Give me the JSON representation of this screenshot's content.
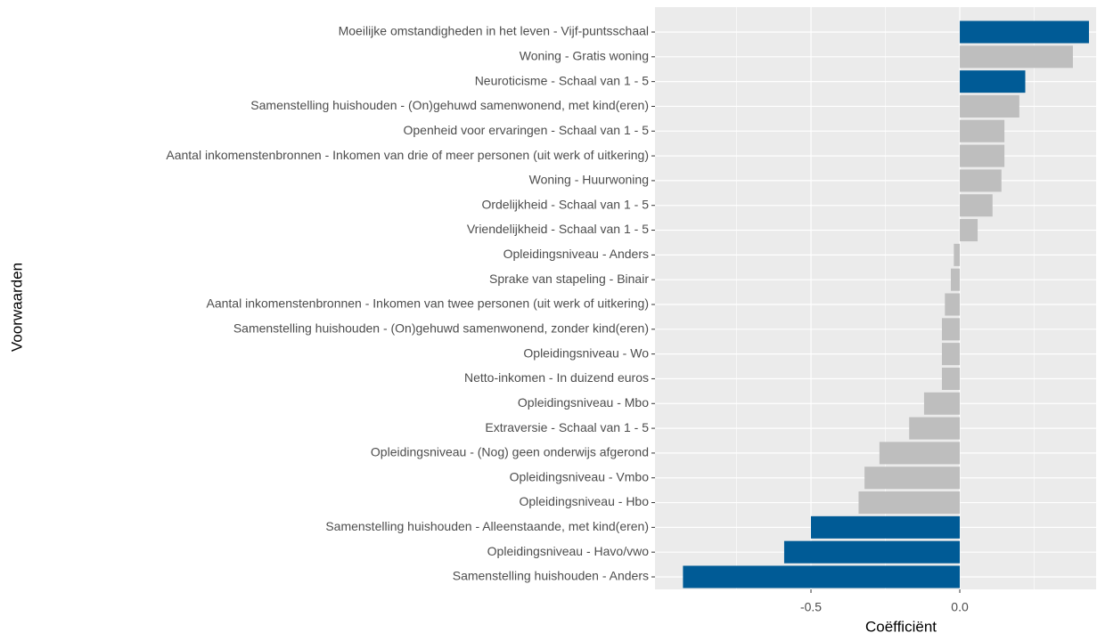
{
  "chart_data": {
    "type": "barh",
    "xlabel": "Coëfficiënt",
    "ylabel": "Voorwaarden",
    "categories": [
      "Moeilijke omstandigheden in het leven - Vijf-puntsschaal",
      "Woning - Gratis woning",
      "Neuroticisme - Schaal van 1 - 5",
      "Samenstelling huishouden - (On)gehuwd samenwonend, met kind(eren)",
      "Openheid voor ervaringen - Schaal van 1 - 5",
      "Aantal inkomenstenbronnen - Inkomen van drie of meer personen (uit werk of uitkering)",
      "Woning - Huurwoning",
      "Ordelijkheid - Schaal van 1 - 5",
      "Vriendelijkheid - Schaal van 1 - 5",
      "Opleidingsniveau - Anders",
      "Sprake van stapeling - Binair",
      "Aantal inkomenstenbronnen - Inkomen van twee personen (uit werk of uitkering)",
      "Samenstelling huishouden - (On)gehuwd samenwonend, zonder kind(eren)",
      "Opleidingsniveau - Wo",
      "Netto-inkomen - In duizend euros",
      "Opleidingsniveau - Mbo",
      "Extraversie - Schaal van 1 - 5",
      "Opleidingsniveau - (Nog) geen onderwijs afgerond",
      "Opleidingsniveau - Vmbo",
      "Opleidingsniveau - Hbo",
      "Samenstelling huishouden - Alleenstaande, met kind(eren)",
      "Opleidingsniveau - Havo/vwo",
      "Samenstelling huishouden - Anders"
    ],
    "values": [
      0.434,
      0.38,
      0.22,
      0.2,
      0.15,
      0.15,
      0.14,
      0.11,
      0.06,
      -0.02,
      -0.03,
      -0.05,
      -0.06,
      -0.06,
      -0.06,
      -0.12,
      -0.17,
      -0.27,
      -0.32,
      -0.34,
      -0.5,
      -0.59,
      -0.93
    ],
    "colors": [
      "#005b96",
      "#bebebe",
      "#005b96",
      "#bebebe",
      "#bebebe",
      "#bebebe",
      "#bebebe",
      "#bebebe",
      "#bebebe",
      "#bebebe",
      "#bebebe",
      "#bebebe",
      "#bebebe",
      "#bebebe",
      "#bebebe",
      "#bebebe",
      "#bebebe",
      "#bebebe",
      "#bebebe",
      "#bebebe",
      "#005b96",
      "#005b96",
      "#005b96"
    ],
    "xlim": [
      -1.024,
      0.458
    ],
    "xticks": [
      {
        "value": -0.5,
        "label": "-0.5"
      },
      {
        "value": 0,
        "label": "0.0"
      }
    ],
    "grid": true
  }
}
